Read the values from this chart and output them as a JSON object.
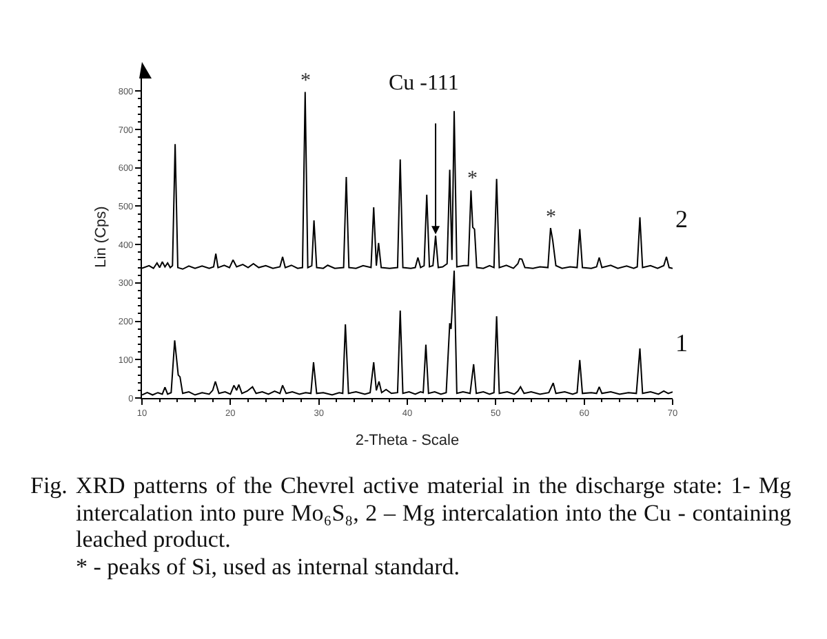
{
  "chart_data": {
    "type": "line",
    "xlabel": "2-Theta - Scale",
    "ylabel": "Lin (Cps)",
    "xlim": [
      10,
      70
    ],
    "ylim": [
      0,
      840
    ],
    "xticks": [
      10,
      {
        "value": 12,
        "label": null
      },
      {
        "value": 14,
        "label": null
      },
      {
        "value": 16,
        "label": null
      },
      {
        "value": 18,
        "label": null
      },
      20,
      {
        "value": 22,
        "label": null
      },
      {
        "value": 24,
        "label": null
      },
      {
        "value": 26,
        "label": null
      },
      {
        "value": 28,
        "label": null
      },
      30,
      {
        "value": 32,
        "label": null
      },
      {
        "value": 34,
        "label": null
      },
      {
        "value": 36,
        "label": null
      },
      {
        "value": 38,
        "label": null
      },
      40,
      {
        "value": 42,
        "label": null
      },
      {
        "value": 44,
        "label": null
      },
      {
        "value": 46,
        "label": null
      },
      {
        "value": 48,
        "label": null
      },
      50,
      {
        "value": 52,
        "label": null
      },
      {
        "value": 54,
        "label": null
      },
      {
        "value": 56,
        "label": null
      },
      {
        "value": 58,
        "label": null
      },
      60,
      {
        "value": 62,
        "label": null
      },
      {
        "value": 64,
        "label": null
      },
      {
        "value": 66,
        "label": null
      },
      {
        "value": 68,
        "label": null
      },
      70
    ],
    "yticks": [
      0,
      {
        "value": 20,
        "label": null
      },
      {
        "value": 40,
        "label": null
      },
      {
        "value": 60,
        "label": null
      },
      {
        "value": 80,
        "label": null
      },
      100,
      {
        "value": 120,
        "label": null
      },
      {
        "value": 140,
        "label": null
      },
      {
        "value": 160,
        "label": null
      },
      {
        "value": 180,
        "label": null
      },
      200,
      {
        "value": 220,
        "label": null
      },
      {
        "value": 240,
        "label": null
      },
      {
        "value": 260,
        "label": null
      },
      {
        "value": 280,
        "label": null
      },
      300,
      {
        "value": 320,
        "label": null
      },
      {
        "value": 340,
        "label": null
      },
      {
        "value": 360,
        "label": null
      },
      {
        "value": 380,
        "label": null
      },
      400,
      {
        "value": 420,
        "label": null
      },
      {
        "value": 440,
        "label": null
      },
      {
        "value": 460,
        "label": null
      },
      {
        "value": 480,
        "label": null
      },
      500,
      {
        "value": 520,
        "label": null
      },
      {
        "value": 540,
        "label": null
      },
      {
        "value": 560,
        "label": null
      },
      {
        "value": 580,
        "label": null
      },
      600,
      {
        "value": 620,
        "label": null
      },
      {
        "value": 640,
        "label": null
      },
      {
        "value": 660,
        "label": null
      },
      {
        "value": 680,
        "label": null
      },
      700,
      {
        "value": 720,
        "label": null
      },
      {
        "value": 740,
        "label": null
      },
      {
        "value": 760,
        "label": null
      },
      {
        "value": 780,
        "label": null
      },
      800
    ],
    "series": [
      {
        "name": "2",
        "color": "#000000",
        "x": [
          10,
          10.8,
          11.3,
          11.7,
          12.0,
          12.3,
          12.6,
          12.9,
          13.2,
          13.45,
          13.75,
          14.05,
          14.6,
          15.3,
          16.0,
          16.8,
          17.6,
          18.1,
          18.35,
          18.6,
          19.3,
          19.9,
          20.3,
          20.7,
          21.4,
          22.0,
          22.6,
          23.2,
          24.0,
          24.8,
          25.6,
          25.9,
          26.2,
          26.9,
          27.6,
          28.15,
          28.45,
          28.75,
          29.2,
          29.45,
          29.75,
          30.5,
          31.0,
          31.8,
          32.8,
          33.1,
          33.4,
          34.2,
          35.0,
          35.9,
          36.2,
          36.5,
          36.75,
          37.05,
          38.0,
          38.9,
          39.2,
          39.5,
          40.4,
          40.9,
          41.2,
          41.5,
          41.9,
          42.2,
          42.5,
          42.9,
          43.2,
          43.5,
          44.0,
          44.5,
          44.8,
          45.05,
          45.3,
          45.6,
          46.4,
          46.9,
          47.2,
          47.4,
          47.6,
          47.85,
          48.6,
          49.3,
          49.8,
          50.1,
          50.4,
          51.2,
          52.0,
          52.5,
          52.7,
          52.95,
          53.3,
          54.2,
          55.0,
          55.9,
          56.2,
          56.45,
          56.8,
          57.5,
          58.4,
          59.2,
          59.5,
          59.8,
          60.8,
          61.4,
          61.7,
          62.0,
          63.0,
          63.8,
          64.8,
          65.6,
          66.0,
          66.3,
          66.6,
          67.5,
          68.3,
          69.0,
          69.3,
          69.6,
          70
        ],
        "values": [
          338,
          345,
          338,
          352,
          340,
          355,
          342,
          352,
          340,
          345,
          662,
          340,
          336,
          344,
          338,
          344,
          338,
          342,
          376,
          340,
          346,
          340,
          360,
          342,
          348,
          340,
          350,
          340,
          345,
          338,
          342,
          368,
          340,
          346,
          338,
          340,
          798,
          340,
          345,
          463,
          340,
          338,
          346,
          338,
          340,
          576,
          340,
          338,
          345,
          340,
          497,
          345,
          404,
          340,
          338,
          340,
          622,
          340,
          338,
          340,
          366,
          340,
          345,
          530,
          342,
          345,
          423,
          340,
          342,
          350,
          595,
          360,
          748,
          342,
          345,
          345,
          541,
          445,
          440,
          340,
          338,
          345,
          340,
          571,
          340,
          346,
          338,
          350,
          363,
          362,
          340,
          338,
          342,
          340,
          443,
          410,
          345,
          338,
          342,
          340,
          440,
          340,
          338,
          342,
          366,
          340,
          346,
          338,
          344,
          338,
          342,
          471,
          340,
          345,
          338,
          345,
          368,
          340,
          338
        ]
      },
      {
        "name": "1",
        "color": "#000000",
        "x": [
          10,
          10.6,
          11.2,
          11.8,
          12.3,
          12.6,
          12.9,
          13.3,
          13.7,
          14.1,
          14.3,
          14.6,
          15.3,
          16.0,
          16.8,
          17.6,
          18.0,
          18.3,
          18.7,
          19.4,
          20.0,
          20.4,
          20.7,
          20.95,
          21.3,
          21.9,
          22.5,
          22.9,
          23.6,
          24.3,
          25.0,
          25.6,
          25.9,
          26.3,
          27.0,
          27.8,
          28.5,
          29.1,
          29.4,
          29.75,
          30.5,
          31.5,
          32.3,
          32.7,
          33.0,
          33.35,
          34.2,
          35.2,
          35.8,
          36.2,
          36.5,
          36.8,
          37.1,
          37.6,
          38.2,
          38.9,
          39.2,
          39.5,
          40.2,
          40.9,
          41.5,
          41.8,
          42.1,
          42.4,
          43.1,
          43.8,
          44.4,
          44.8,
          44.95,
          45.3,
          45.6,
          46.3,
          47.1,
          47.5,
          47.8,
          48.6,
          49.3,
          49.8,
          50.1,
          50.4,
          51.3,
          52.1,
          52.5,
          52.8,
          53.2,
          54.0,
          55.0,
          56.0,
          56.5,
          56.8,
          57.8,
          58.7,
          59.2,
          59.5,
          59.8,
          60.8,
          61.4,
          61.7,
          62.0,
          63.0,
          64.0,
          65.0,
          65.9,
          66.3,
          66.6,
          67.5,
          68.4,
          69.0,
          69.5,
          70
        ],
        "values": [
          8,
          14,
          8,
          14,
          10,
          28,
          10,
          14,
          150,
          60,
          55,
          12,
          16,
          8,
          14,
          10,
          20,
          43,
          12,
          16,
          10,
          33,
          20,
          35,
          12,
          18,
          29,
          12,
          16,
          10,
          18,
          12,
          33,
          12,
          16,
          10,
          14,
          12,
          93,
          12,
          14,
          8,
          14,
          12,
          192,
          12,
          16,
          10,
          14,
          93,
          20,
          43,
          14,
          22,
          12,
          14,
          228,
          12,
          16,
          10,
          16,
          14,
          139,
          12,
          16,
          10,
          14,
          195,
          180,
          332,
          12,
          16,
          12,
          88,
          12,
          16,
          10,
          14,
          213,
          12,
          16,
          10,
          18,
          29,
          12,
          16,
          10,
          14,
          39,
          12,
          16,
          10,
          14,
          99,
          12,
          14,
          12,
          29,
          12,
          16,
          10,
          14,
          12,
          129,
          12,
          16,
          10,
          18,
          12,
          16
        ]
      }
    ],
    "annotations": [
      {
        "text": "Cu -111",
        "x": 43.2,
        "y": 423
      },
      {
        "text": "*",
        "x": 28.45,
        "y": 798
      },
      {
        "text": "*",
        "x": 47.2,
        "y": 541
      },
      {
        "text": "*",
        "x": 56.2,
        "y": 443
      },
      "Fig. XRD patterns of the Chevrel active material in the discharge state: 1- Mg intercalation into pure Mo₆S₈, 2 – Mg intercalation into the Cu - containing leached product.",
      "* - peaks of Si, used as internal standard."
    ]
  }
}
